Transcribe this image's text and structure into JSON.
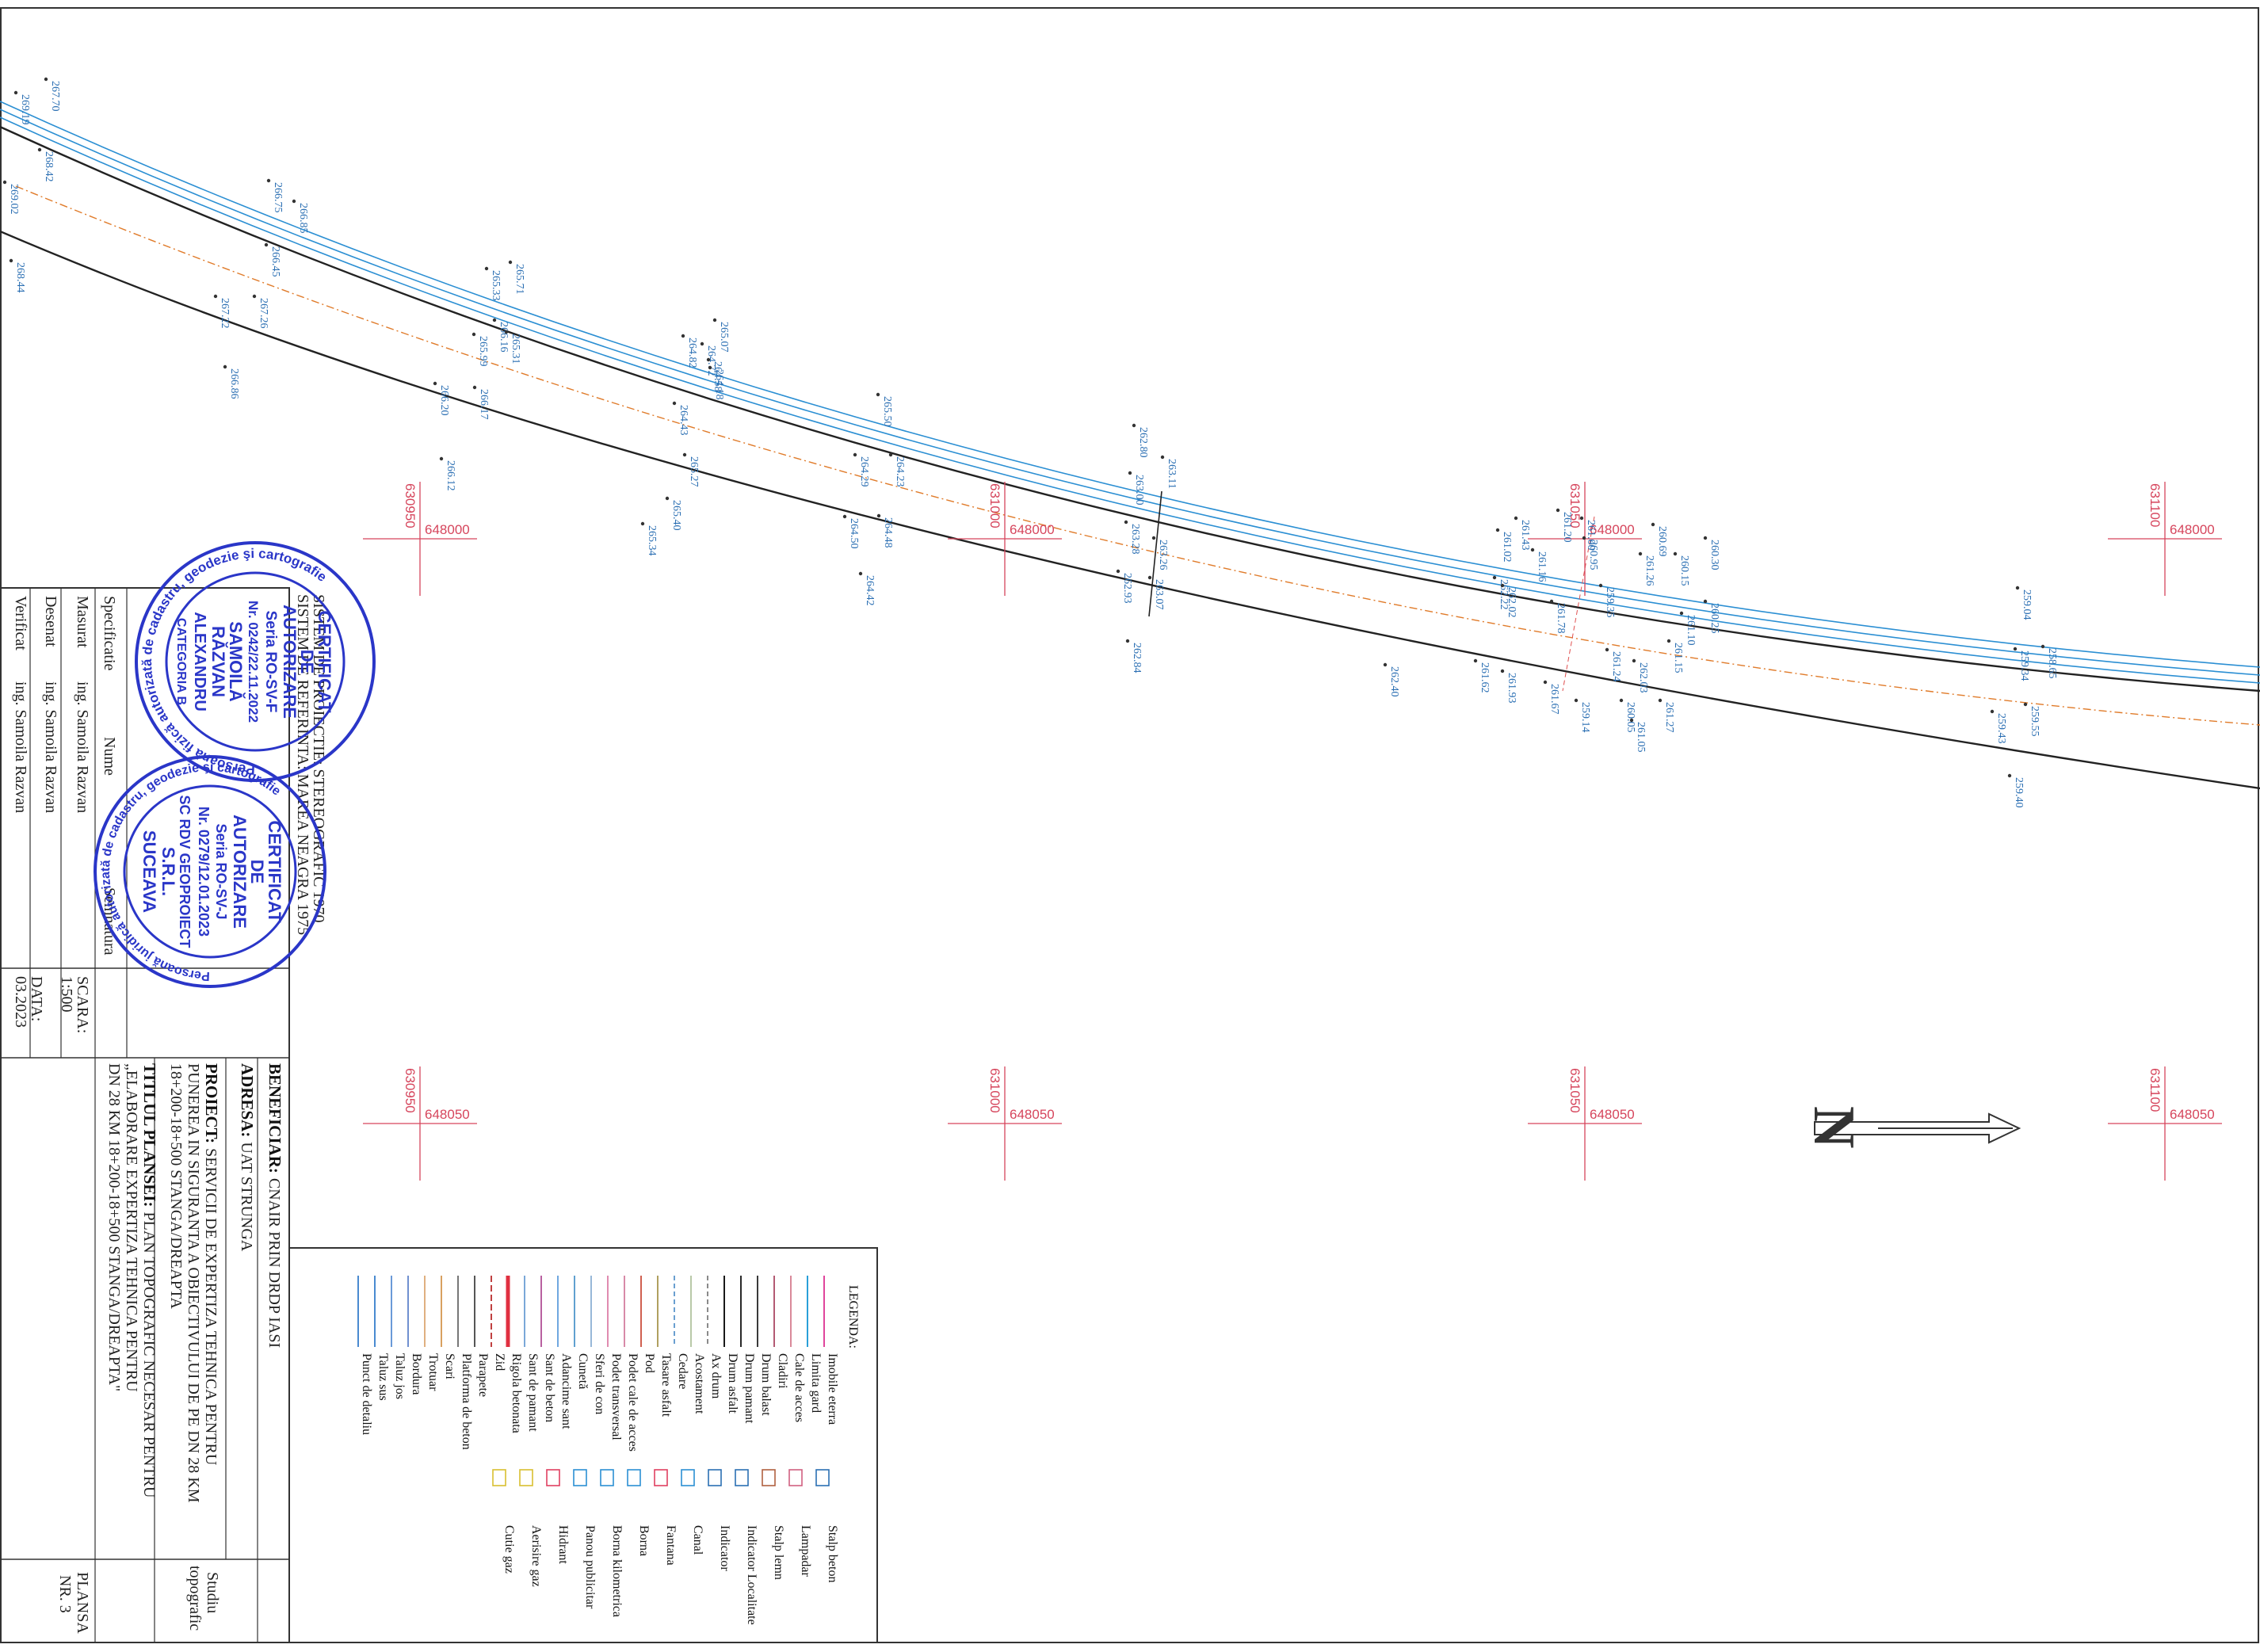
{
  "grid_marks": [
    {
      "n": "630950",
      "e": "648000"
    },
    {
      "n": "631000",
      "e": "648000"
    },
    {
      "n": "631050",
      "e": "648000"
    },
    {
      "n": "631100",
      "e": "648000"
    },
    {
      "n": "630950",
      "e": "648050"
    },
    {
      "n": "631000",
      "e": "648050"
    },
    {
      "n": "631050",
      "e": "648050"
    },
    {
      "n": "631100",
      "e": "648050"
    }
  ],
  "elevations": [
    "267.70",
    "269.19",
    "268.42",
    "269.02",
    "268.44",
    "266.75",
    "266.85",
    "266.45",
    "267.26",
    "267.22",
    "266.86",
    "265.71",
    "265.33",
    "266.16",
    "265.31",
    "265.99",
    "266.17",
    "266.20",
    "266.12",
    "265.07",
    "264.82",
    "264.72",
    "264.58",
    "264.18",
    "264.43",
    "265.27",
    "265.40",
    "265.34",
    "265.50",
    "264.29",
    "264.23",
    "264.48",
    "264.50",
    "264.42",
    "262.80",
    "263.11",
    "263.00",
    "263.28",
    "263.26",
    "262.93",
    "263.07",
    "262.84",
    "262.40",
    "261.43",
    "261.20",
    "261.02",
    "261.16",
    "261.00",
    "260.95",
    "259.35",
    "261.78",
    "262.22",
    "262.02",
    "261.62",
    "261.93",
    "261.67",
    "261.24",
    "260.05",
    "259.14",
    "261.05",
    "260.69",
    "260.15",
    "261.26",
    "260.30",
    "261.10",
    "260.25",
    "261.15",
    "262.03",
    "261.27",
    "259.04",
    "259.34",
    "258.65",
    "259.55",
    "259.43",
    "259.40"
  ],
  "north": {
    "label": "N"
  },
  "title_block": {
    "projection": "SISTEM DE PROIECTIE: STEREOGRAFIC 1970",
    "reference": "SISTEM DE REFERINTA: MAREA NEAGRA 1975",
    "specificatie": "Specificatie",
    "nume": "Nume",
    "semnatura": "Semnatura",
    "masurat_label": "Masurat",
    "masurat_name": "ing. Samoila Razvan",
    "desenat_label": "Desenat",
    "desenat_name": "ing. Samoila Razvan",
    "verificat_label": "Verificat",
    "verificat_name": "ing. Samoila Razvan",
    "scara_label": "SCARA:",
    "scara_value": "1:500",
    "data_label": "DATA:",
    "data_value": "03.2023",
    "beneficiar_label": "BENEFICIAR:",
    "beneficiar_value": "CNAIR PRIN DRDP IASI",
    "adresa_label": "ADRESA:",
    "adresa_value": "UAT STRUNGA",
    "proiect_label": "PROIECT:",
    "proiect_lines": [
      "SERVICII DE EXPERTIZA TEHNICA PENTRU",
      "PUNEREA IN SIGURANTA A OBIECTIVULUI DE PE DN 28 KM",
      "18+200-18+500 STANGA/DREAPTA"
    ],
    "titlu_label": "TITLUL PLANSEI:",
    "titlu_lines": [
      "PLAN TOPOGRAFIC NECESAR PENTRU",
      "„ELABORARE EXPERTIZA TEHNICA PENTRU",
      "DN 28 KM 18+200-18+500 STANGA/DREAPTA\""
    ],
    "studiu_lines": [
      "Studiu",
      "topografic"
    ],
    "plansa_lines": [
      "PLANSA",
      "NR. 3"
    ]
  },
  "stamp1": {
    "ring": "Persoană fizică autorizată de cadastru, geodezie şi cartografie",
    "lines": [
      "CERTIFICAT",
      "DE",
      "AUTORIZARE",
      "Seria RO-SV-F",
      "Nr. 0242/22.11.2022",
      "SAMOILĂ",
      "RĂZVAN",
      "ALEXANDRU",
      "CATEGORIA B"
    ]
  },
  "stamp2": {
    "ring": "Persoană juridică autorizată de cadastru, geodezie şi cartografie",
    "lines": [
      "CERTIFICAT",
      "DE",
      "AUTORIZARE",
      "Seria RO-SV-J",
      "Nr. 0279/12.01.2023",
      "SC RDV GEOPROIECT",
      "S.R.L.",
      "SUCEAVA"
    ]
  },
  "legend": {
    "title": "LEGENDA:",
    "col1": [
      "Imobile eterra",
      "Limita gard",
      "Cale de acces",
      "Cladiri",
      "Drum balast",
      "Drum pamant",
      "Drum asfalt",
      "Ax drum",
      "Acostament",
      "Cedare",
      "Tasare asfalt",
      "Pod",
      "Podet cale de acces",
      "Podet transversal",
      "Sferi de con",
      "Cunetă",
      "Adancime sant",
      "Sant de beton",
      "Sant de pamant",
      "Rigola betonata",
      "Zid",
      "Parapete",
      "Platforma de beton",
      "Scari",
      "Trotuar",
      "Bordura",
      "Taluz jos",
      "Taluz sus",
      "Punct de detaliu"
    ],
    "col2": [
      "Stalp beton",
      "Lampadar",
      "Stalp lemn",
      "Indicator Localitate",
      "Indicator",
      "Canal",
      "Fantana",
      "Borna",
      "Borna kilometrica",
      "Panou publicitar",
      "Hidrant",
      "Aerisire gaz",
      "Cutie gaz"
    ],
    "col1_colors": [
      "#e0459c",
      "#2a9fd8",
      "#d9899a",
      "#b35a73",
      "#3a3a3a",
      "#2a2a2a",
      "#1a1a1a",
      "#8a8a8a",
      "#b9c9a8",
      "#6a9fd0",
      "#b0a060",
      "#d06050",
      "#d88aa8",
      "#e08cb0",
      "#98b8d8",
      "#60a0d0",
      "#70a8e0",
      "#b860a0",
      "#7aa8d8",
      "#e03040",
      "#c04040",
      "#555555",
      "#777777",
      "#d8a060",
      "#e0b080",
      "#7090d0",
      "#6a9ad8",
      "#4a8ad0",
      "#4a8ad0"
    ]
  },
  "colors": {
    "road": "#2a2a2a",
    "lane": "#2b8fd3",
    "axis": "#e07b2a",
    "grid": "#d6455c",
    "text_blue": "#2b6fb3",
    "stamp": "#2a36c8"
  }
}
